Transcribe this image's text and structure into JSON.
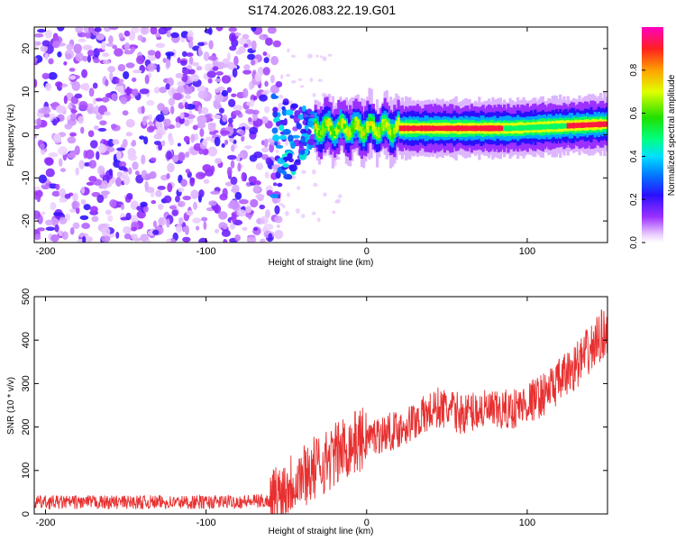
{
  "title": "S174.2026.083.22.19.G01",
  "chart_data": [
    {
      "type": "heatmap",
      "xlabel": "Height of straight line (km)",
      "ylabel": "Frequency (Hz)",
      "xlim": [
        -207,
        150
      ],
      "ylim": [
        -25,
        25
      ],
      "xticks": [
        -200,
        -100,
        0,
        100
      ],
      "yticks": [
        -20,
        -10,
        0,
        10,
        20
      ],
      "colorbar": {
        "label": "Normalized spectral amplitude",
        "range": [
          0,
          1
        ],
        "ticks": [
          "0.0",
          "0.2",
          "0.4",
          "0.6",
          "0.8"
        ],
        "colormap": "rainbow (magenta-blue-cyan-green-yellow-red)"
      },
      "description_values": {
        "noise_region_x": [
          -207,
          -58
        ],
        "transition_x": [
          -58,
          -30
        ],
        "signal_center_freq": 1.5,
        "signal_amplitude_peak": 1.0
      }
    },
    {
      "type": "line",
      "xlabel": "Height of straight line (km)",
      "ylabel": "SNR (10 * v/v)",
      "xlim": [
        -207,
        150
      ],
      "ylim": [
        0,
        500
      ],
      "xticks": [
        -200,
        -100,
        0,
        100
      ],
      "yticks": [
        0,
        100,
        200,
        300,
        400,
        500
      ],
      "series": [
        {
          "name": "SNR",
          "color": "#e83030",
          "x": [
            -207,
            -150,
            -100,
            -60,
            -45,
            -30,
            -20,
            -10,
            0,
            10,
            20,
            30,
            45,
            50,
            60,
            70,
            80,
            90,
            100,
            110,
            120,
            130,
            140,
            150
          ],
          "values": [
            27,
            27,
            27,
            30,
            80,
            110,
            135,
            160,
            175,
            185,
            195,
            215,
            245,
            240,
            230,
            240,
            235,
            240,
            255,
            275,
            305,
            340,
            380,
            430
          ]
        }
      ]
    }
  ]
}
